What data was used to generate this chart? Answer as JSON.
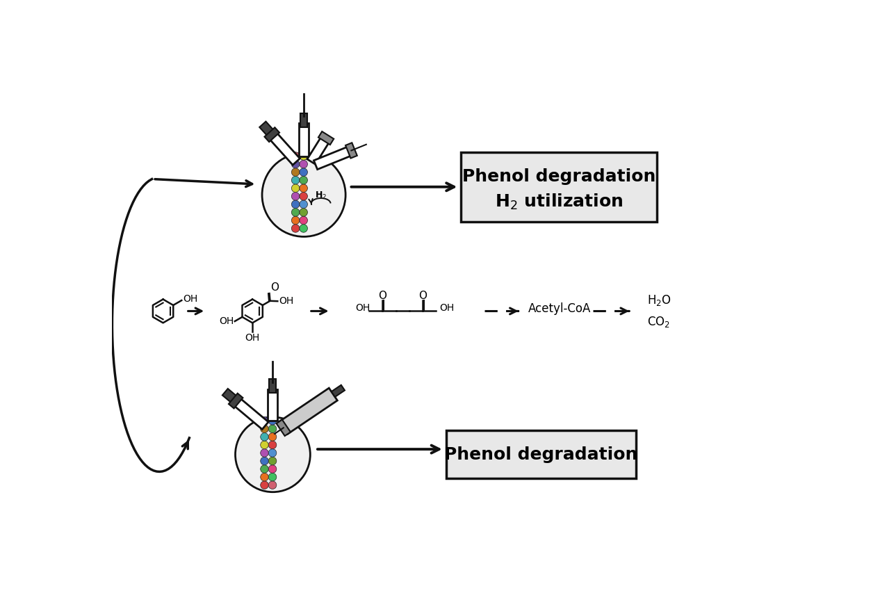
{
  "bg_color": "#ffffff",
  "box1_line1": "Phenol degradation",
  "box1_line2": "H₂ utilization",
  "box2_text": "Phenol degradation",
  "box_bg": "#e8e8e8",
  "box_edge": "#111111",
  "bead_colors": [
    "#d94040",
    "#e87020",
    "#50aa50",
    "#4070c0",
    "#b050b0",
    "#d0d030",
    "#40b0b0",
    "#b07820",
    "#6050a0",
    "#d06070",
    "#40c060",
    "#e04080",
    "#70a030",
    "#5090d0"
  ],
  "dark_gray": "#404040",
  "mid_gray": "#888888",
  "light_gray": "#cccccc",
  "flask_fill": "#f0f0f0",
  "lc": "#111111",
  "lw_main": 2.0,
  "font_size_box": 18,
  "font_size_chem": 10
}
